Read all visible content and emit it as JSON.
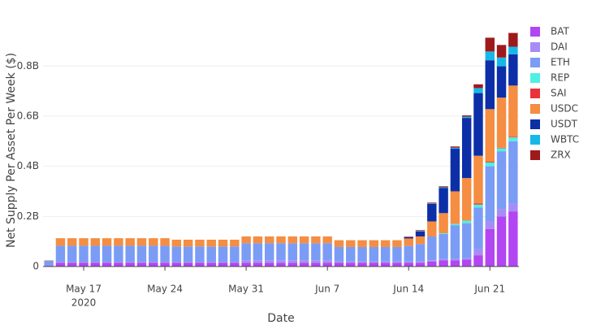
{
  "chart_data": {
    "type": "stacked_bar",
    "x_label": "Date",
    "y_label": "Net Supply Per Asset Per Week ($)",
    "x": [
      "2020-05-14",
      "2020-05-15",
      "2020-05-16",
      "2020-05-17",
      "2020-05-18",
      "2020-05-19",
      "2020-05-20",
      "2020-05-21",
      "2020-05-22",
      "2020-05-23",
      "2020-05-24",
      "2020-05-25",
      "2020-05-26",
      "2020-05-27",
      "2020-05-28",
      "2020-05-29",
      "2020-05-30",
      "2020-05-31",
      "2020-06-01",
      "2020-06-02",
      "2020-06-03",
      "2020-06-04",
      "2020-06-05",
      "2020-06-06",
      "2020-06-07",
      "2020-06-08",
      "2020-06-09",
      "2020-06-10",
      "2020-06-11",
      "2020-06-12",
      "2020-06-13",
      "2020-06-14",
      "2020-06-15",
      "2020-06-16",
      "2020-06-17",
      "2020-06-18",
      "2020-06-19",
      "2020-06-20",
      "2020-06-21",
      "2020-06-22",
      "2020-06-23"
    ],
    "xlim": [
      "2020-05-13T12:00:00Z",
      "2020-06-23T12:00:00Z"
    ],
    "xticks": [
      {
        "value": "2020-05-17",
        "label": "May 17"
      },
      {
        "value": "2020-05-24",
        "label": "May 24"
      },
      {
        "value": "2020-05-31",
        "label": "May 31"
      },
      {
        "value": "2020-06-07",
        "label": "Jun 7"
      },
      {
        "value": "2020-06-14",
        "label": "Jun 14"
      },
      {
        "value": "2020-06-21",
        "label": "Jun 21"
      }
    ],
    "x_year_label": "2020",
    "ylim": [
      0,
      950000000
    ],
    "yticks": [
      0,
      {
        "value": 200000000,
        "label": "0.2B"
      },
      {
        "value": 400000000,
        "label": "0.4B"
      },
      {
        "value": 600000000,
        "label": "0.6B"
      },
      {
        "value": 800000000,
        "label": "0.8B"
      }
    ],
    "grid": true,
    "legend": "right",
    "series": [
      {
        "name": "BAT",
        "color": "#b246f2",
        "values": [
          3000000.0,
          15000000.0,
          15000000.0,
          15000000.0,
          15000000.0,
          15000000.0,
          15000000.0,
          15000000.0,
          15000000.0,
          15000000.0,
          15000000.0,
          15000000.0,
          15000000.0,
          15000000.0,
          15000000.0,
          15000000.0,
          15000000.0,
          15000000.0,
          15000000.0,
          15000000.0,
          15000000.0,
          15000000.0,
          15000000.0,
          15000000.0,
          15000000.0,
          15000000.0,
          15000000.0,
          15000000.0,
          15000000.0,
          15000000.0,
          15000000.0,
          15000000.0,
          15000000.0,
          20000000.0,
          25000000.0,
          25000000.0,
          28000000.0,
          45000000.0,
          150000000.0,
          200000000.0,
          220000000.0
        ]
      },
      {
        "name": "DAI",
        "color": "#a88cf6",
        "values": [
          2000000.0,
          3000000.0,
          3000000.0,
          3000000.0,
          3000000.0,
          3000000.0,
          3000000.0,
          3000000.0,
          3000000.0,
          3000000.0,
          3000000.0,
          3000000.0,
          3000000.0,
          3000000.0,
          3000000.0,
          3000000.0,
          3000000.0,
          10000000.0,
          10000000.0,
          10000000.0,
          10000000.0,
          10000000.0,
          10000000.0,
          10000000.0,
          10000000.0,
          5000000.0,
          5000000.0,
          5000000.0,
          5000000.0,
          5000000.0,
          5000000.0,
          5000000.0,
          5000000.0,
          5000000.0,
          5000000.0,
          5000000.0,
          5000000.0,
          25000000.0,
          30000000.0,
          30000000.0,
          30000000.0
        ]
      },
      {
        "name": "ETH",
        "color": "#7b9cf5",
        "values": [
          18000000.0,
          65000000.0,
          65000000.0,
          65000000.0,
          65000000.0,
          65000000.0,
          65000000.0,
          65000000.0,
          65000000.0,
          65000000.0,
          65000000.0,
          62000000.0,
          62000000.0,
          62000000.0,
          62000000.0,
          62000000.0,
          62000000.0,
          68000000.0,
          68000000.0,
          68000000.0,
          68000000.0,
          68000000.0,
          68000000.0,
          68000000.0,
          68000000.0,
          58000000.0,
          58000000.0,
          58000000.0,
          58000000.0,
          58000000.0,
          58000000.0,
          62000000.0,
          70000000.0,
          95000000.0,
          100000000.0,
          135000000.0,
          140000000.0,
          165000000.0,
          220000000.0,
          230000000.0,
          250000000.0
        ]
      },
      {
        "name": "REP",
        "color": "#4ff0e2",
        "values": [
          0,
          0,
          0,
          0,
          0,
          0,
          0,
          0,
          0,
          0,
          0,
          0,
          0,
          0,
          0,
          0,
          0,
          0,
          0,
          0,
          0,
          0,
          0,
          0,
          0,
          0,
          0,
          0,
          0,
          0,
          0,
          0,
          0,
          0,
          3000000.0,
          5000000.0,
          10000000.0,
          12000000.0,
          15000000.0,
          12000000.0,
          15000000.0
        ]
      },
      {
        "name": "SAI",
        "color": "#e8333a",
        "values": [
          0,
          0,
          0,
          0,
          0,
          0,
          0,
          0,
          0,
          0,
          0,
          0,
          0,
          0,
          0,
          0,
          0,
          0,
          0,
          0,
          0,
          0,
          0,
          0,
          0,
          0,
          0,
          0,
          0,
          0,
          0,
          0,
          0,
          0,
          0,
          0,
          0,
          5000000.0,
          3000000.0,
          2000000.0,
          2000000.0
        ]
      },
      {
        "name": "USDC",
        "color": "#f58d42",
        "values": [
          2000000.0,
          30000000.0,
          30000000.0,
          30000000.0,
          30000000.0,
          30000000.0,
          30000000.0,
          30000000.0,
          30000000.0,
          30000000.0,
          30000000.0,
          27000000.0,
          27000000.0,
          27000000.0,
          27000000.0,
          27000000.0,
          27000000.0,
          27000000.0,
          27000000.0,
          27000000.0,
          27000000.0,
          27000000.0,
          27000000.0,
          27000000.0,
          27000000.0,
          27000000.0,
          27000000.0,
          27000000.0,
          27000000.0,
          27000000.0,
          27000000.0,
          30000000.0,
          30000000.0,
          60000000.0,
          80000000.0,
          130000000.0,
          170000000.0,
          190000000.0,
          210000000.0,
          200000000.0,
          205000000.0
        ]
      },
      {
        "name": "USDT",
        "color": "#0c2fa8",
        "values": [
          0,
          0,
          0,
          0,
          0,
          0,
          0,
          0,
          0,
          0,
          0,
          0,
          0,
          0,
          0,
          0,
          0,
          0,
          0,
          0,
          0,
          0,
          0,
          0,
          0,
          0,
          0,
          0,
          0,
          0,
          0,
          5000000.0,
          20000000.0,
          70000000.0,
          100000000.0,
          170000000.0,
          240000000.0,
          250000000.0,
          195000000.0,
          125000000.0,
          125000000.0
        ]
      },
      {
        "name": "WBTC",
        "color": "#17b8e8",
        "values": [
          0,
          0,
          0,
          0,
          0,
          0,
          0,
          0,
          0,
          0,
          0,
          0,
          0,
          0,
          0,
          0,
          0,
          0,
          0,
          0,
          0,
          0,
          0,
          0,
          0,
          0,
          0,
          0,
          0,
          0,
          0,
          0,
          2000000.0,
          2000000.0,
          3000000.0,
          4000000.0,
          5000000.0,
          20000000.0,
          35000000.0,
          35000000.0,
          30000000.0
        ]
      },
      {
        "name": "ZRX",
        "color": "#9e1a1a",
        "values": [
          0,
          0,
          0,
          0,
          0,
          0,
          0,
          0,
          0,
          0,
          0,
          0,
          0,
          0,
          0,
          0,
          0,
          0,
          0,
          0,
          0,
          0,
          0,
          0,
          0,
          0,
          0,
          0,
          0,
          0,
          0,
          2000000.0,
          3000000.0,
          3000000.0,
          4000000.0,
          5000000.0,
          5000000.0,
          15000000.0,
          55000000.0,
          50000000.0,
          55000000.0
        ]
      }
    ]
  }
}
